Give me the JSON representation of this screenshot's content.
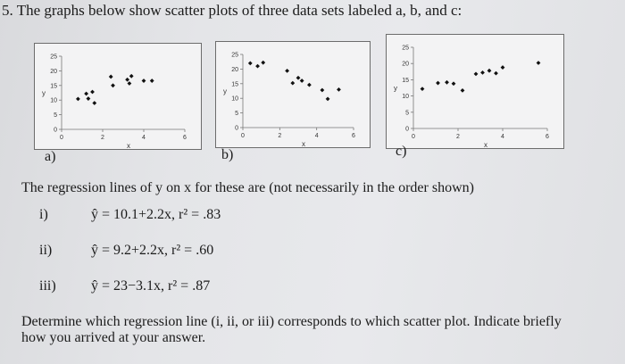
{
  "question": {
    "number": "5.",
    "text": "The graphs below show scatter plots of three data sets labeled a, b, and c:"
  },
  "chart_data": [
    {
      "type": "scatter",
      "label": "a)",
      "xlabel": "x",
      "ylabel": "y",
      "xlim": [
        0,
        6
      ],
      "ylim": [
        0,
        25
      ],
      "xticks": [
        "0",
        "2",
        "4",
        "6"
      ],
      "yticks": [
        "0",
        "5",
        "10",
        "15",
        "20",
        "25"
      ],
      "points": [
        [
          0.8,
          10.4
        ],
        [
          1.2,
          12.2
        ],
        [
          1.3,
          10.5
        ],
        [
          1.5,
          12.8
        ],
        [
          1.6,
          9.0
        ],
        [
          2.4,
          18.0
        ],
        [
          2.5,
          15.0
        ],
        [
          3.2,
          17.0
        ],
        [
          3.3,
          15.7
        ],
        [
          3.4,
          18.2
        ],
        [
          4.0,
          16.6
        ],
        [
          4.4,
          16.6
        ]
      ]
    },
    {
      "type": "scatter",
      "label": "b)",
      "xlabel": "x",
      "ylabel": "y",
      "xlim": [
        0,
        6
      ],
      "ylim": [
        0,
        25
      ],
      "xticks": [
        "0",
        "2",
        "4",
        "6"
      ],
      "yticks": [
        "0",
        "5",
        "10",
        "15",
        "20",
        "25"
      ],
      "points": [
        [
          0.4,
          22.0
        ],
        [
          0.8,
          21.0
        ],
        [
          1.1,
          22.2
        ],
        [
          2.4,
          19.4
        ],
        [
          2.7,
          15.2
        ],
        [
          3.0,
          17.0
        ],
        [
          3.2,
          16.0
        ],
        [
          3.6,
          14.6
        ],
        [
          4.3,
          12.8
        ],
        [
          4.6,
          9.8
        ],
        [
          5.2,
          13.0
        ]
      ]
    },
    {
      "type": "scatter",
      "label": "c)",
      "xlabel": "x",
      "ylabel": "y",
      "xlim": [
        0,
        6
      ],
      "ylim": [
        0,
        25
      ],
      "xticks": [
        "0",
        "2",
        "4",
        "6"
      ],
      "yticks": [
        "0",
        "5",
        "10",
        "15",
        "20",
        "25"
      ],
      "points": [
        [
          0.4,
          12.2
        ],
        [
          1.1,
          14.0
        ],
        [
          1.5,
          14.2
        ],
        [
          1.8,
          13.8
        ],
        [
          2.2,
          11.7
        ],
        [
          2.8,
          16.8
        ],
        [
          3.1,
          17.2
        ],
        [
          3.4,
          17.8
        ],
        [
          3.7,
          17.0
        ],
        [
          4.0,
          18.8
        ],
        [
          5.6,
          20.2
        ]
      ]
    }
  ],
  "regression": {
    "intro": "The regression lines of y on x for these are (not necessarily in the order shown)",
    "lines": [
      {
        "num": "i)",
        "eq": "ŷ = 10.1+2.2x,  r² = .83"
      },
      {
        "num": "ii)",
        "eq": "ŷ = 9.2+2.2x,  r² = .60"
      },
      {
        "num": "iii)",
        "eq": "ŷ = 23−3.1x,  r² = .87"
      }
    ]
  },
  "footer": {
    "line1": "Determine which regression line (i, ii, or iii) corresponds to which scatter plot.  Indicate briefly",
    "line2": "how you arrived at your answer."
  }
}
